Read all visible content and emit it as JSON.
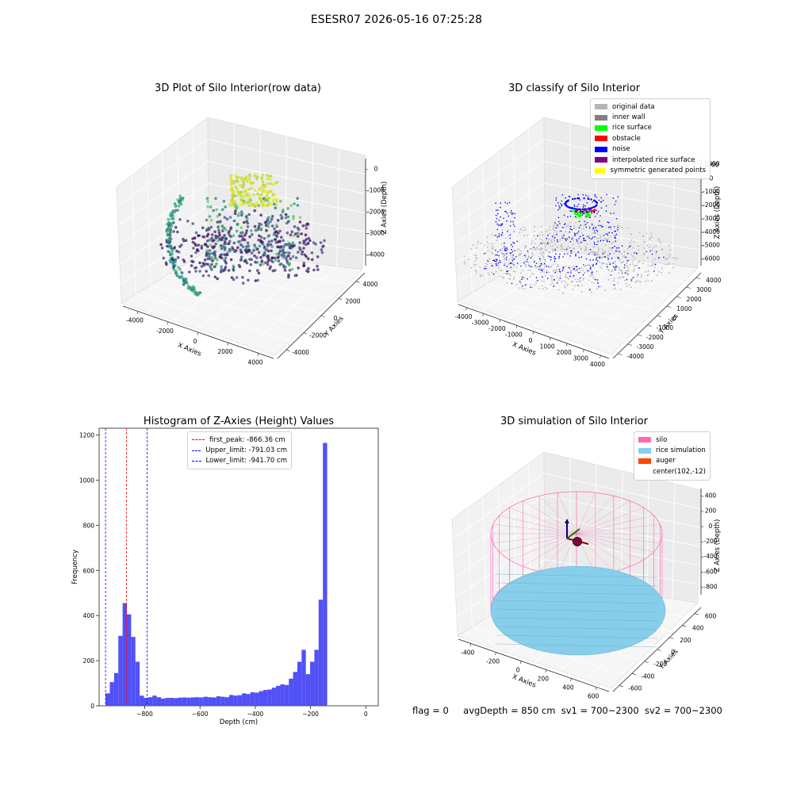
{
  "suptitle": "ESESR07 2026-05-16 07:25:28",
  "status": {
    "flag": "flag = 0",
    "avg_depth": "avgDepth = 850 cm",
    "sv1": "sv1 = 700~2300",
    "sv2": "sv2 = 700~2300"
  },
  "chart_data": [
    {
      "type": "scatter",
      "subtype": "3d",
      "title": "3D Plot of Silo Interior(row data)",
      "xlabel": "X Axies",
      "ylabel": "Y Axies",
      "zlabel": "Z Axies (Depth)",
      "xlim": [
        -4500,
        4500
      ],
      "ylim": [
        -4500,
        4500
      ],
      "zlim": [
        -4800,
        200
      ],
      "x_ticks": [
        "-4000",
        "-2000",
        "0",
        "2000",
        "4000"
      ],
      "y_ticks": [
        "-4000",
        "-2000",
        "0",
        "2000",
        "4000"
      ],
      "z_ticks": [
        "0",
        "-1000",
        "-2000",
        "-3000",
        "-4000"
      ],
      "colormap": [
        "#440154",
        "#3b528b",
        "#21918c",
        "#5ec962",
        "#fde725"
      ],
      "grid": true
    },
    {
      "type": "scatter",
      "subtype": "3d",
      "title": "3D classify of Silo Interior",
      "xlabel": "X Axies",
      "ylabel": "Y Axies",
      "zlabel": "Z Axies (Depth)",
      "xlim": [
        -4200,
        4200
      ],
      "ylim": [
        -4200,
        4200
      ],
      "zlim": [
        -6300,
        1200
      ],
      "x_ticks": [
        "-4000",
        "-3000",
        "-2000",
        "-1000",
        "0",
        "1000",
        "2000",
        "3000",
        "4000"
      ],
      "y_ticks": [
        "-4000",
        "-3000",
        "-2000",
        "-1000",
        "0",
        "1000",
        "2000",
        "3000",
        "4000"
      ],
      "z_ticks": [
        "1000",
        "0",
        "-1000",
        "-2000",
        "-3000",
        "-4000",
        "-5000",
        "-6000"
      ],
      "z_ticks_partial": [
        "2000"
      ],
      "legend": [
        {
          "label": "original data",
          "color": "#b4b4b4"
        },
        {
          "label": "inner wall",
          "color": "#808080"
        },
        {
          "label": "rice surface",
          "color": "#00ff00"
        },
        {
          "label": "obstacle",
          "color": "#ff0000"
        },
        {
          "label": "noise",
          "color": "#0000ff"
        },
        {
          "label": "interpolated rice surface",
          "color": "#800080"
        },
        {
          "label": "symmetric generated points",
          "color": "#ffff00"
        }
      ],
      "legend_position": "top-right",
      "grid": true
    },
    {
      "type": "bar",
      "subtype": "histogram",
      "title": "Histogram of Z-Axies (Height) Values",
      "xlabel": "Depth (cm)",
      "ylabel": "Frequency",
      "xlim": [
        -965,
        45
      ],
      "ylim": [
        0,
        1230
      ],
      "x_ticks": [
        -800,
        -600,
        -400,
        -200,
        0
      ],
      "y_ticks": [
        0,
        200,
        400,
        600,
        800,
        1000,
        1200
      ],
      "bar_color": "#4848f5",
      "bin_start": -941.7,
      "bin_width": 15.42,
      "values": [
        55,
        105,
        145,
        310,
        455,
        405,
        305,
        195,
        45,
        35,
        38,
        45,
        38,
        32,
        35,
        35,
        34,
        36,
        37,
        36,
        37,
        38,
        37,
        40,
        38,
        37,
        42,
        40,
        38,
        48,
        45,
        47,
        55,
        52,
        60,
        58,
        65,
        70,
        72,
        80,
        88,
        95,
        92,
        120,
        150,
        195,
        248,
        140,
        195,
        248,
        470,
        1165
      ],
      "lines": [
        {
          "label": "first_peak: -866.36 cm",
          "value": -866.36,
          "color": "#ff0000"
        },
        {
          "label": "Upper_limit: -791.03 cm",
          "value": -791.03,
          "color": "#0000ff"
        },
        {
          "label": "Lower_limit: -941.70 cm",
          "value": -941.7,
          "color": "#0000ff"
        }
      ],
      "legend_position": "top-center",
      "grid": false
    },
    {
      "type": "surface",
      "subtype": "3d",
      "title": "3D simulation of Silo Interior",
      "xlabel": "X Axies",
      "ylabel": "Y Axies",
      "zlabel": "Z Axies (Depth)",
      "xlim": [
        -520,
        720
      ],
      "ylim": [
        -720,
        720
      ],
      "zlim": [
        -930,
        430
      ],
      "x_ticks": [
        "-400",
        "-200",
        "0",
        "200",
        "400",
        "600"
      ],
      "y_ticks": [
        "600",
        "400",
        "200",
        "0",
        "-200",
        "-400",
        "-600"
      ],
      "z_ticks": [
        "400",
        "200",
        "0",
        "-200",
        "-400",
        "-600",
        "-800"
      ],
      "legend": [
        {
          "label": "silo",
          "color": "#ff69b4"
        },
        {
          "label": "rice simulation",
          "color": "#87ceeb"
        },
        {
          "label": "auger",
          "color": "#ff4500"
        },
        {
          "label": "center(102,-12)",
          "color": ""
        }
      ],
      "legend_position": "top-right",
      "grid": true
    }
  ]
}
